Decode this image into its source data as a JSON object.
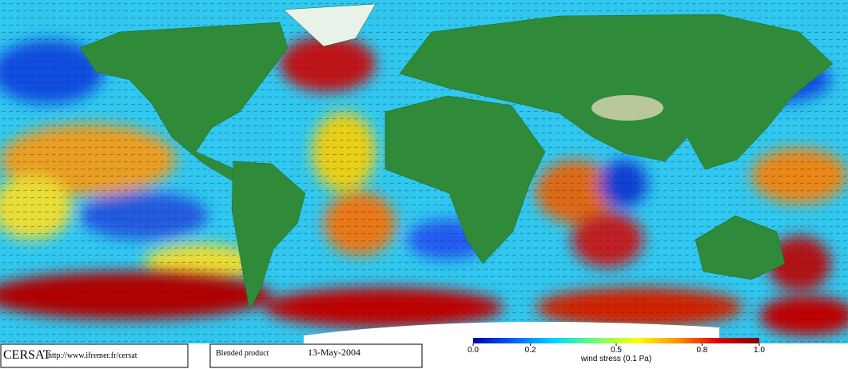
{
  "footer": {
    "logo": "CERSAT",
    "url": "http://www.ifremer.fr/cersat",
    "product": "Blended product",
    "date": "13-May-2004"
  },
  "colorbar": {
    "label": "wind stress (0.1 Pa)",
    "lim": [
      0,
      1
    ],
    "ticks": [
      {
        "value": 0,
        "label": "0.0"
      },
      0.2,
      0.5,
      0.8,
      {
        "value": 1,
        "label": "1.0"
      }
    ],
    "colors": [
      "#0000b0",
      "#0060ff",
      "#00d8ff",
      "#70ff70",
      "#ffff00",
      "#ff9000",
      "#e00000",
      "#800000"
    ]
  }
}
